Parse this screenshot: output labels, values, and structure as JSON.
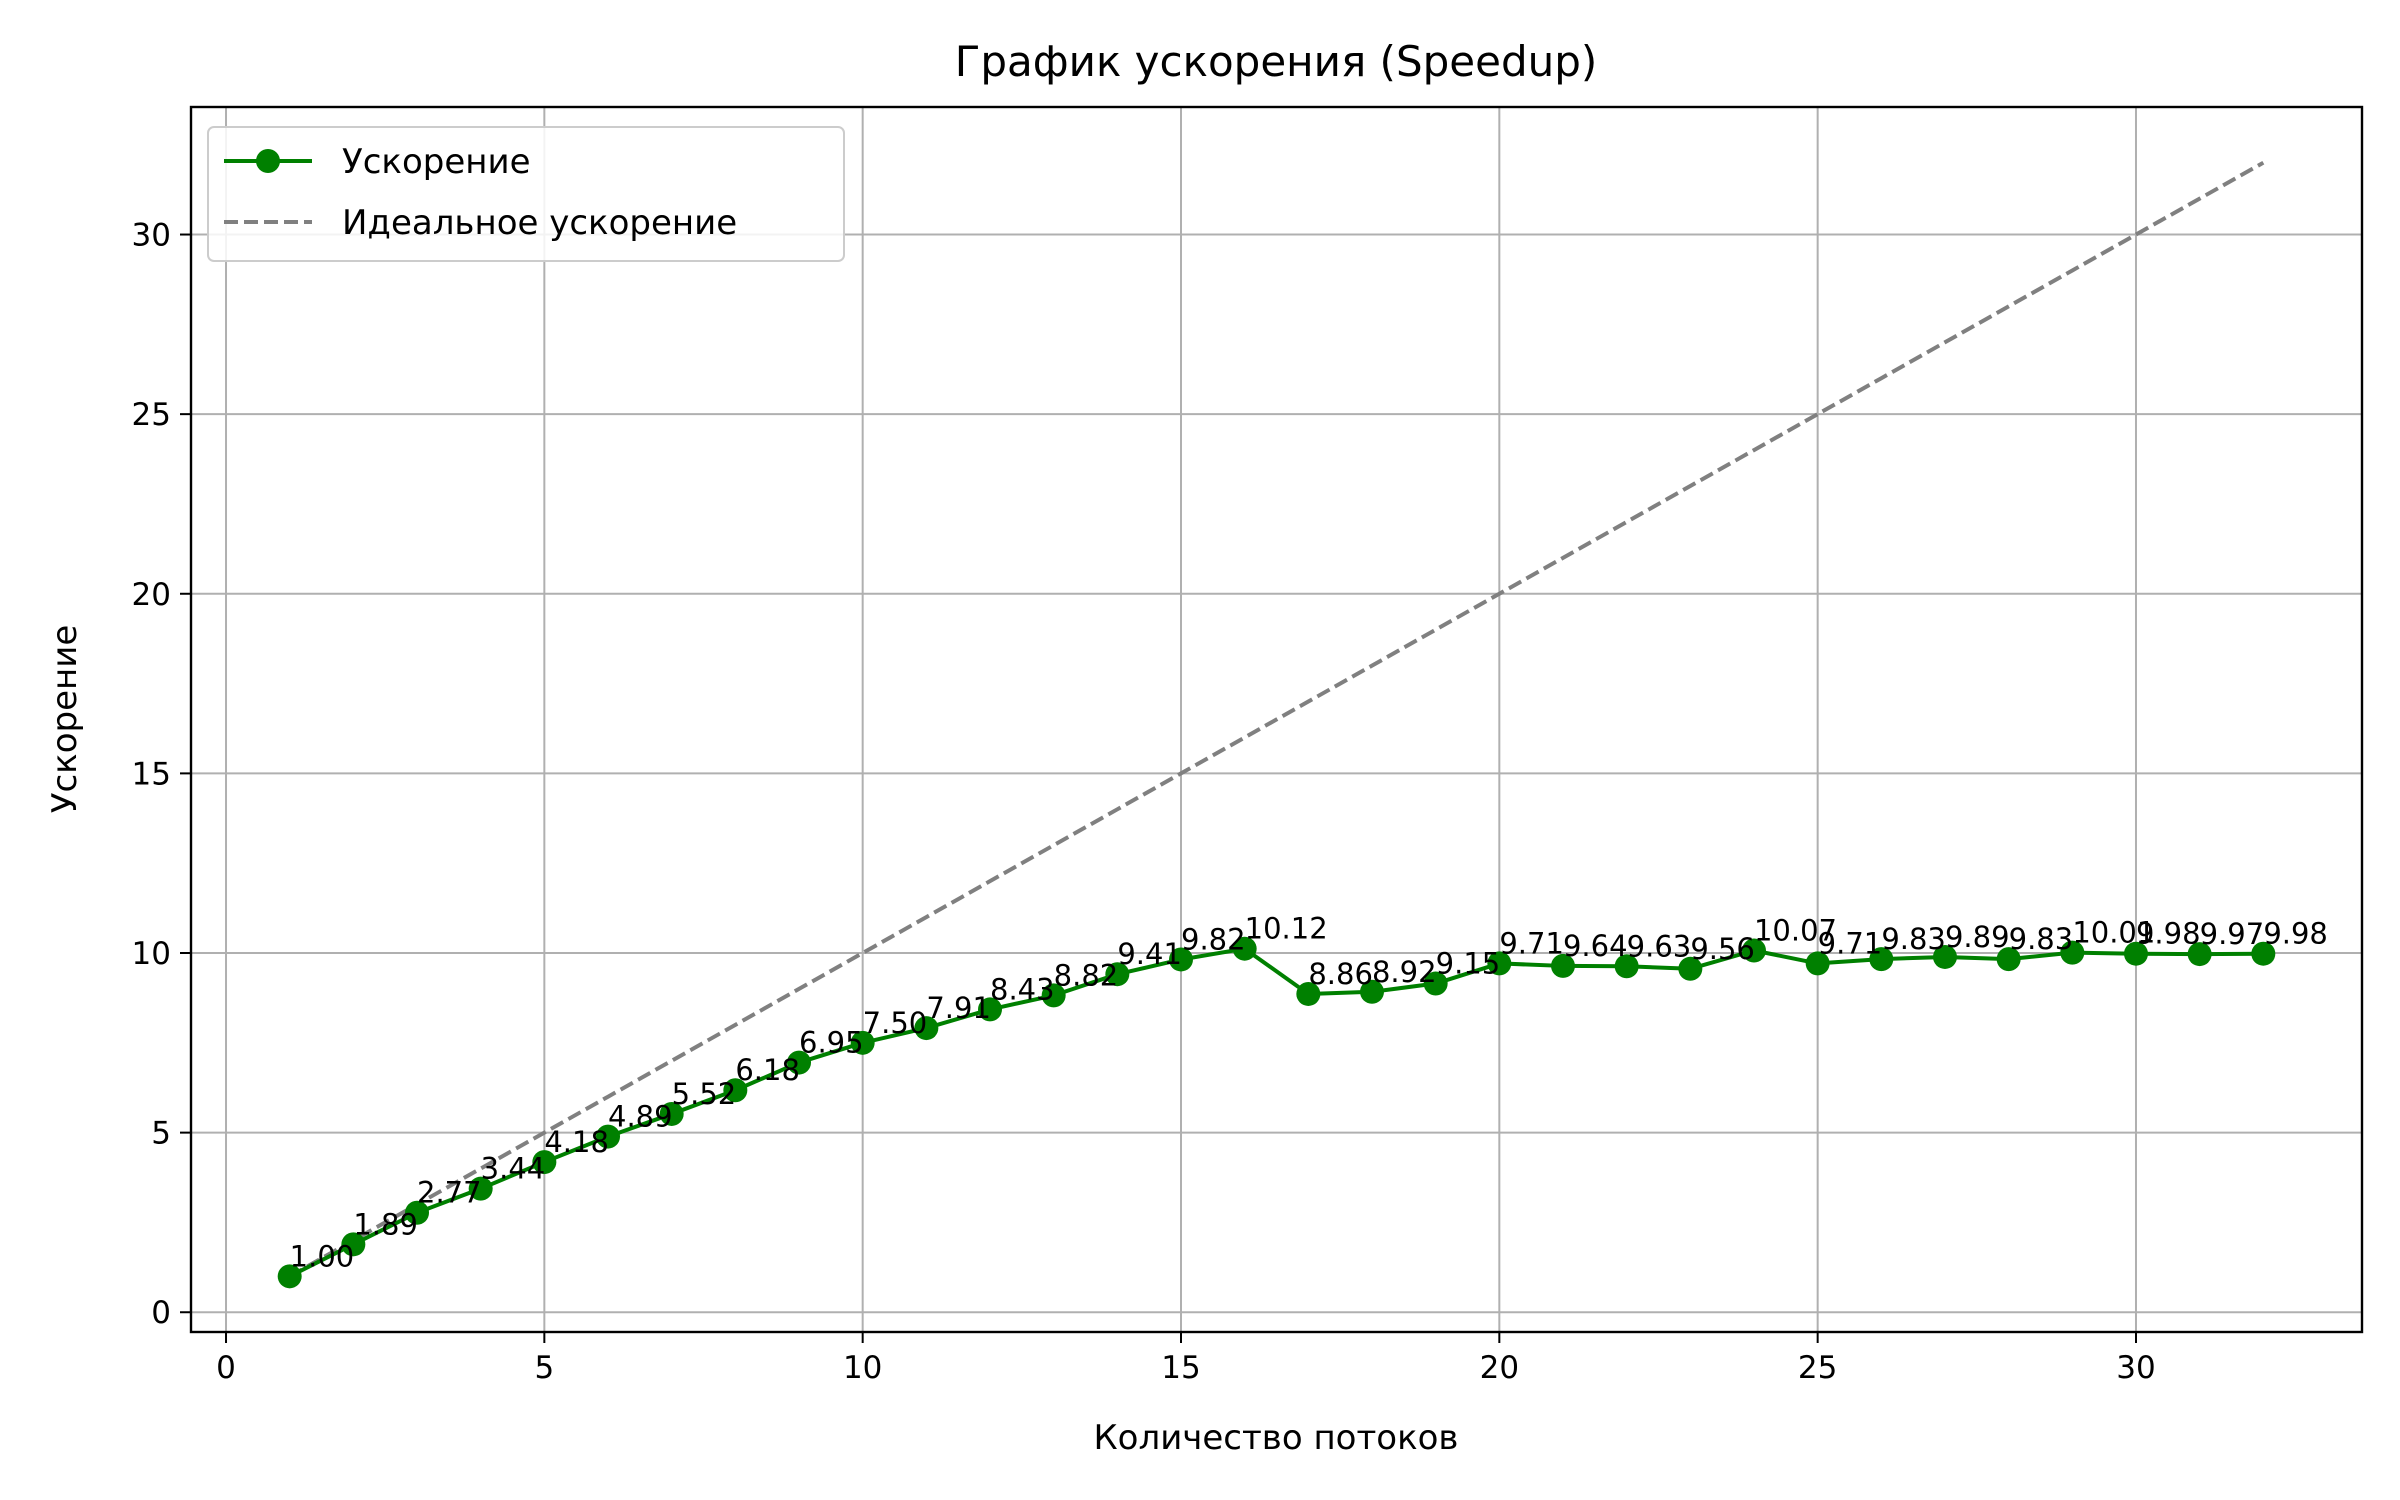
{
  "chart_data": {
    "type": "line",
    "title": "График ускорения (Speedup)",
    "xlabel": "Количество потоков",
    "ylabel": "Ускорение",
    "xlim": [
      -0.55,
      33.55
    ],
    "ylim": [
      -0.55,
      33.55
    ],
    "xticks": [
      0,
      5,
      10,
      15,
      20,
      25,
      30
    ],
    "yticks": [
      0,
      5,
      10,
      15,
      20,
      25,
      30
    ],
    "grid": true,
    "legend_position": "top-left",
    "x": [
      1,
      2,
      3,
      4,
      5,
      6,
      7,
      8,
      9,
      10,
      11,
      12,
      13,
      14,
      15,
      16,
      17,
      18,
      19,
      20,
      21,
      22,
      23,
      24,
      25,
      26,
      27,
      28,
      29,
      30,
      31,
      32
    ],
    "series": [
      {
        "name": "Ускорение",
        "color": "#008000",
        "style": "solid-with-markers",
        "values": [
          1.0,
          1.89,
          2.77,
          3.44,
          4.18,
          4.89,
          5.52,
          6.18,
          6.95,
          7.5,
          7.91,
          8.43,
          8.82,
          9.41,
          9.82,
          10.12,
          8.86,
          8.92,
          9.15,
          9.71,
          9.64,
          9.63,
          9.56,
          10.07,
          9.71,
          9.83,
          9.89,
          9.83,
          10.01,
          9.98,
          9.97,
          9.98
        ],
        "labels": [
          "1.00",
          "1.89",
          "2.77",
          "3.44",
          "4.18",
          "4.89",
          "5.52",
          "6.18",
          "6.95",
          "7.50",
          "7.91",
          "8.43",
          "8.82",
          "9.41",
          "9.82",
          "10.12",
          "8.86",
          "8.92",
          "9.15",
          "9.71",
          "9.64",
          "9.63",
          "9.56",
          "10.07",
          "9.71",
          "9.83",
          "9.89",
          "9.83",
          "10.01",
          "9.98",
          "9.97",
          "9.98"
        ]
      },
      {
        "name": "Идеальное ускорение",
        "color": "#808080",
        "style": "dashed",
        "values": [
          1,
          2,
          3,
          4,
          5,
          6,
          7,
          8,
          9,
          10,
          11,
          12,
          13,
          14,
          15,
          16,
          17,
          18,
          19,
          20,
          21,
          22,
          23,
          24,
          25,
          26,
          27,
          28,
          29,
          30,
          31,
          32
        ]
      }
    ]
  }
}
